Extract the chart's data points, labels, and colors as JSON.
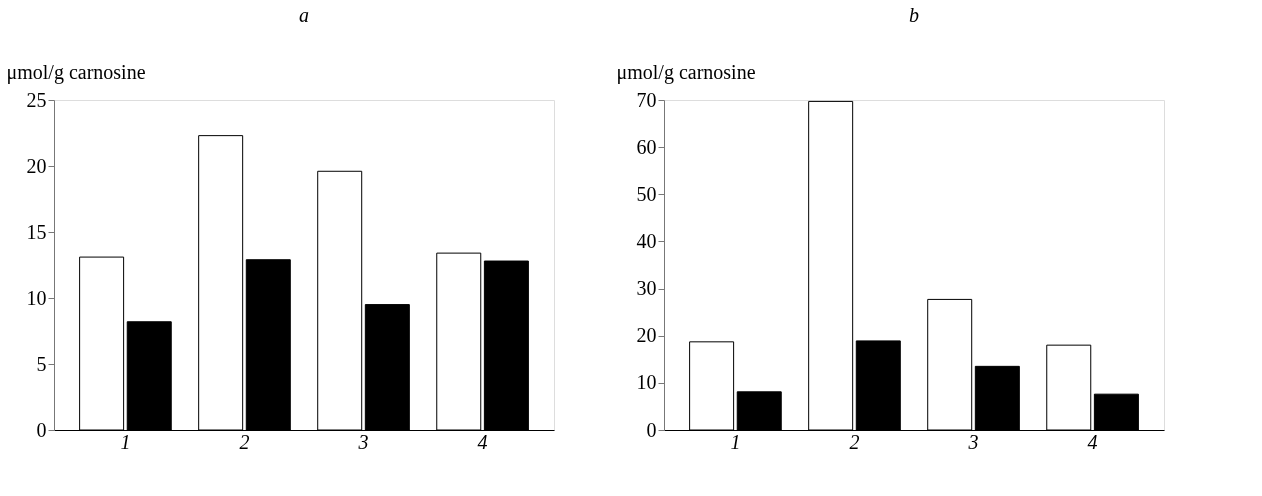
{
  "chart_data": [
    {
      "type": "bar",
      "title": "a",
      "ylabel": "μmol/g carnosine",
      "categories": [
        "1",
        "2",
        "3",
        "4"
      ],
      "series": [
        {
          "color": "#ffffff",
          "values": [
            13.1,
            22.3,
            19.6,
            13.4
          ]
        },
        {
          "color": "#000000",
          "values": [
            8.2,
            12.9,
            9.5,
            12.8
          ]
        }
      ],
      "ylim": [
        0,
        25
      ],
      "yticks": [
        0,
        5,
        10,
        15,
        20,
        25
      ],
      "grid": false,
      "legend": false
    },
    {
      "type": "bar",
      "title": "b",
      "ylabel": "μmol/g carnosine",
      "categories": [
        "1",
        "2",
        "3",
        "4"
      ],
      "series": [
        {
          "color": "#ffffff",
          "values": [
            18.7,
            69.7,
            27.7,
            18.0
          ]
        },
        {
          "color": "#000000",
          "values": [
            8.1,
            18.9,
            13.5,
            7.6
          ]
        }
      ],
      "ylim": [
        0,
        70
      ],
      "yticks": [
        0,
        10,
        20,
        30,
        40,
        50,
        60,
        70
      ],
      "grid": false,
      "legend": false
    }
  ]
}
